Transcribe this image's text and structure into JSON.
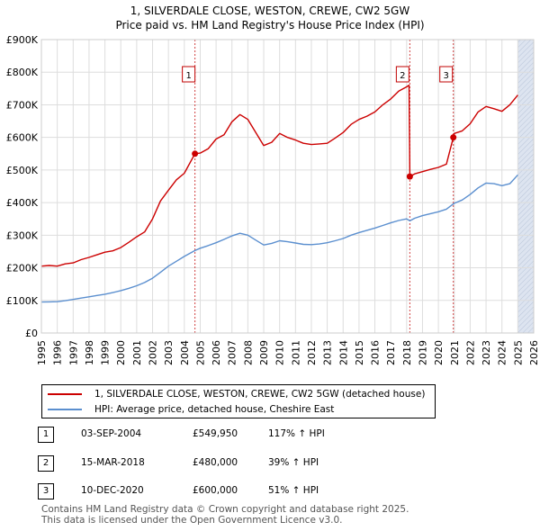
{
  "title_line1": "1, SILVERDALE CLOSE, WESTON, CREWE, CW2 5GW",
  "title_line2": "Price paid vs. HM Land Registry's House Price Index (HPI)",
  "legend": {
    "property_label": "1, SILVERDALE CLOSE, WESTON, CREWE, CW2 5GW (detached house)",
    "hpi_label": "HPI: Average price, detached house, Cheshire East"
  },
  "colors": {
    "property": "#cc0000",
    "hpi": "#5b8fcf",
    "grid": "#dddddd",
    "marker_line": "#d04040",
    "future_shade": "#dde4f0"
  },
  "transactions": [
    {
      "num": "1",
      "date": "03-SEP-2004",
      "price": "£549,950",
      "hpi_change": "117% ↑ HPI"
    },
    {
      "num": "2",
      "date": "15-MAR-2018",
      "price": "£480,000",
      "hpi_change": "39% ↑ HPI"
    },
    {
      "num": "3",
      "date": "10-DEC-2020",
      "price": "£600,000",
      "hpi_change": "51% ↑ HPI"
    }
  ],
  "footer_line1": "Contains HM Land Registry data © Crown copyright and database right 2025.",
  "footer_line2": "This data is licensed under the Open Government Licence v3.0.",
  "chart_data": {
    "type": "line",
    "title": "Price paid vs. HM Land Registry's House Price Index (HPI)",
    "xlabel": "",
    "ylabel": "",
    "xlim": [
      1995,
      2026
    ],
    "ylim": [
      0,
      900000
    ],
    "x_ticks": [
      "1995",
      "1996",
      "1997",
      "1998",
      "1999",
      "2000",
      "2001",
      "2002",
      "2003",
      "2004",
      "2005",
      "2006",
      "2007",
      "2008",
      "2009",
      "2010",
      "2011",
      "2012",
      "2013",
      "2014",
      "2015",
      "2016",
      "2017",
      "2018",
      "2019",
      "2020",
      "2021",
      "2022",
      "2023",
      "2024",
      "2025",
      "2026"
    ],
    "y_ticks": [
      {
        "value": 0,
        "label": "£0"
      },
      {
        "value": 100000,
        "label": "£100K"
      },
      {
        "value": 200000,
        "label": "£200K"
      },
      {
        "value": 300000,
        "label": "£300K"
      },
      {
        "value": 400000,
        "label": "£400K"
      },
      {
        "value": 500000,
        "label": "£500K"
      },
      {
        "value": 600000,
        "label": "£600K"
      },
      {
        "value": 700000,
        "label": "£700K"
      },
      {
        "value": 800000,
        "label": "£800K"
      },
      {
        "value": 900000,
        "label": "£900K"
      }
    ],
    "future_shade_from": 2025.0,
    "sales": [
      {
        "label": "1",
        "x": 2004.67,
        "y": 549950
      },
      {
        "label": "2",
        "x": 2018.2,
        "y": 480000
      },
      {
        "label": "3",
        "x": 2020.94,
        "y": 600000
      }
    ],
    "series": [
      {
        "name": "1, SILVERDALE CLOSE, WESTON, CREWE, CW2 5GW (detached house)",
        "x": [
          1995.0,
          1995.5,
          1996.0,
          1996.5,
          1997.0,
          1997.5,
          1998.0,
          1998.5,
          1999.0,
          1999.5,
          2000.0,
          2000.5,
          2001.0,
          2001.5,
          2002.0,
          2002.5,
          2003.0,
          2003.5,
          2004.0,
          2004.67,
          2005.0,
          2005.5,
          2006.0,
          2006.5,
          2007.0,
          2007.5,
          2008.0,
          2008.5,
          2009.0,
          2009.5,
          2010.0,
          2010.5,
          2011.0,
          2011.5,
          2012.0,
          2012.5,
          2013.0,
          2013.5,
          2014.0,
          2014.5,
          2015.0,
          2015.5,
          2016.0,
          2016.5,
          2017.0,
          2017.5,
          2018.0,
          2018.15,
          2018.2,
          2018.5,
          2019.0,
          2019.5,
          2020.0,
          2020.5,
          2020.94,
          2021.0,
          2021.5,
          2022.0,
          2022.5,
          2023.0,
          2023.5,
          2024.0,
          2024.5,
          2025.0
        ],
        "values": [
          205000,
          207000,
          205000,
          212000,
          215000,
          225000,
          232000,
          240000,
          248000,
          252000,
          262000,
          278000,
          295000,
          310000,
          350000,
          405000,
          438000,
          470000,
          490000,
          549950,
          552000,
          565000,
          595000,
          608000,
          648000,
          670000,
          655000,
          615000,
          575000,
          585000,
          612000,
          600000,
          592000,
          582000,
          578000,
          580000,
          582000,
          598000,
          615000,
          640000,
          655000,
          665000,
          678000,
          700000,
          718000,
          742000,
          755000,
          760000,
          480000,
          488000,
          495000,
          502000,
          508000,
          518000,
          600000,
          612000,
          620000,
          642000,
          678000,
          695000,
          688000,
          680000,
          700000,
          730000
        ]
      },
      {
        "name": "HPI: Average price, detached house, Cheshire East",
        "x": [
          1995.0,
          1995.5,
          1996.0,
          1996.5,
          1997.0,
          1997.5,
          1998.0,
          1998.5,
          1999.0,
          1999.5,
          2000.0,
          2000.5,
          2001.0,
          2001.5,
          2002.0,
          2002.5,
          2003.0,
          2003.5,
          2004.0,
          2004.67,
          2005.0,
          2005.5,
          2006.0,
          2006.5,
          2007.0,
          2007.5,
          2008.0,
          2008.5,
          2009.0,
          2009.5,
          2010.0,
          2010.5,
          2011.0,
          2011.5,
          2012.0,
          2012.5,
          2013.0,
          2013.5,
          2014.0,
          2014.5,
          2015.0,
          2015.5,
          2016.0,
          2016.5,
          2017.0,
          2017.5,
          2018.0,
          2018.2,
          2018.5,
          2019.0,
          2019.5,
          2020.0,
          2020.5,
          2020.94,
          2021.0,
          2021.5,
          2022.0,
          2022.5,
          2023.0,
          2023.5,
          2024.0,
          2024.5,
          2025.0
        ],
        "values": [
          95000,
          95500,
          96000,
          99000,
          103000,
          107000,
          111000,
          115000,
          119000,
          124000,
          130000,
          137000,
          145000,
          155000,
          168000,
          186000,
          205000,
          220000,
          235000,
          253000,
          260000,
          268000,
          277000,
          287000,
          298000,
          306000,
          300000,
          285000,
          270000,
          275000,
          283000,
          280000,
          276000,
          272000,
          271000,
          273000,
          277000,
          283000,
          290000,
          300000,
          308000,
          315000,
          322000,
          330000,
          338000,
          345000,
          350000,
          344000,
          352000,
          360000,
          366000,
          372000,
          380000,
          396000,
          398000,
          408000,
          425000,
          445000,
          460000,
          458000,
          452000,
          458000,
          485000
        ]
      }
    ]
  }
}
